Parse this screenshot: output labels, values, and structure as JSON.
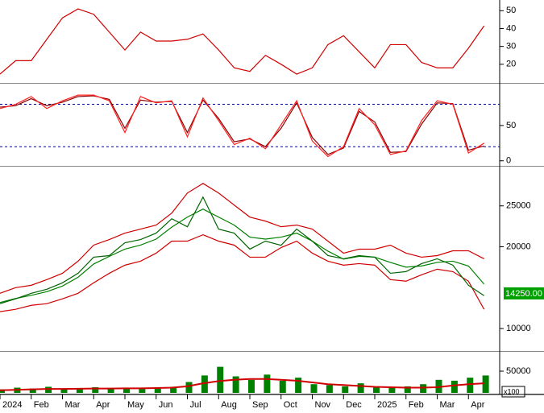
{
  "chart_data": {
    "type": "stock",
    "x": [
      0,
      0.5,
      1,
      1.5,
      2,
      2.5,
      3,
      3.5,
      4,
      4.5,
      5,
      5.5,
      6,
      6.5,
      7,
      7.5,
      8,
      8.5,
      9,
      9.5,
      10,
      10.5,
      11,
      11.5,
      12,
      12.5,
      13,
      13.5,
      14,
      14.5,
      15,
      15.5
    ],
    "xlim": [
      0,
      16
    ],
    "xticks": [
      {
        "value": 0,
        "label": "2024"
      },
      {
        "value": 1,
        "label": "Feb"
      },
      {
        "value": 2,
        "label": "Mar"
      },
      {
        "value": 3,
        "label": "Apr"
      },
      {
        "value": 4,
        "label": "May"
      },
      {
        "value": 5,
        "label": "Jun"
      },
      {
        "value": 6,
        "label": "Jul"
      },
      {
        "value": 7,
        "label": "Aug"
      },
      {
        "value": 8,
        "label": "Sep"
      },
      {
        "value": 9,
        "label": "Oct"
      },
      {
        "value": 10,
        "label": "Nov"
      },
      {
        "value": 11,
        "label": "Dec"
      },
      {
        "value": 12,
        "label": "2025"
      },
      {
        "value": 13,
        "label": "Feb"
      },
      {
        "value": 14,
        "label": "Mar"
      },
      {
        "value": 15,
        "label": "Apr"
      }
    ],
    "panels": [
      {
        "type": "line",
        "ylim": [
          10,
          56
        ],
        "yticks": [
          20,
          30,
          40,
          50
        ],
        "series": [
          {
            "color": "#d00000",
            "values": [
              14.5,
              22,
              22,
              34,
              46,
              51,
              48,
              38,
              28,
              38,
              33,
              33,
              34,
              37,
              28,
              18,
              16,
              25,
              20,
              14.5,
              18,
              31,
              36,
              27,
              18,
              31,
              31,
              21,
              18,
              18,
              29,
              41.5
            ]
          }
        ]
      },
      {
        "type": "line",
        "ylim": [
          -6,
          108
        ],
        "yticks": [
          0,
          50
        ],
        "hlines": [
          80,
          20
        ],
        "series": [
          {
            "color": "#8b0000",
            "values": [
              76,
              78,
              88,
              78,
              83,
              91,
              92,
              87,
              46,
              86,
              83,
              84,
              40,
              86,
              60,
              27,
              31,
              20,
              46,
              82,
              33,
              9,
              18,
              70,
              55,
              12,
              13,
              52,
              82,
              81,
              15,
              21
            ]
          },
          {
            "color": "#ff2020",
            "values": [
              74,
              80,
              91,
              74,
              85,
              93,
              93,
              85,
              40,
              91,
              82,
              85,
              34,
              89,
              57,
              23,
              32,
              17,
              51,
              85,
              28,
              6,
              20,
              74,
              51,
              9,
              14,
              57,
              85,
              80,
              11,
              25
            ]
          }
        ]
      },
      {
        "type": "line",
        "ylim": [
          7350,
          29700
        ],
        "yticks": [
          10000,
          20000,
          25000
        ],
        "last_label": "14250.00",
        "last_value": 14250,
        "series": [
          {
            "color": "#d00000",
            "values": [
              14310,
              15000,
              15290,
              15980,
              16760,
              18240,
              20200,
              20880,
              21670,
              22160,
              22650,
              24120,
              26570,
              27750,
              26570,
              25100,
              23630,
              23140,
              22450,
              22650,
              22160,
              20690,
              19220,
              19710,
              19710,
              20200,
              19220,
              18730,
              18920,
              19510,
              19510,
              18530
            ]
          },
          {
            "color": "#d00000",
            "values": [
              12060,
              12350,
              12840,
              13040,
              13630,
              14310,
              15590,
              16760,
              17750,
              18240,
              19220,
              20690,
              20690,
              21470,
              20690,
              20200,
              18730,
              18730,
              19900,
              20690,
              19220,
              18240,
              17750,
              17940,
              17750,
              15980,
              15790,
              16570,
              17260,
              16960,
              15790,
              12350
            ]
          },
          {
            "color": "#008000",
            "values": [
              13185,
              13675,
              14065,
              14510,
              15195,
              16275,
              17895,
              18820,
              19710,
              20200,
              20935,
              22405,
              23630,
              24610,
              23630,
              22650,
              21180,
              20935,
              21175,
              21670,
              20690,
              19465,
              18485,
              18825,
              18730,
              18090,
              17505,
              17650,
              18090,
              18235,
              17650,
              15440
            ]
          },
          {
            "color": "#006400",
            "values": [
              13040,
              13630,
              14310,
              14800,
              15590,
              16760,
              18730,
              18920,
              20490,
              20880,
              21670,
              23430,
              22450,
              26080,
              22160,
              21670,
              19710,
              20690,
              20180,
              22160,
              20690,
              18920,
              18530,
              18920,
              18730,
              16760,
              16960,
              17940,
              18530,
              17750,
              15290,
              14020
            ]
          }
        ]
      },
      {
        "type": "bar",
        "ylim": [
          0,
          92600
        ],
        "yticks": [
          50000
        ],
        "unit_label": "x100",
        "color": "#008000",
        "values": [
          8000,
          12000,
          10000,
          14000,
          9000,
          11000,
          13000,
          10000,
          12000,
          9000,
          10000,
          14000,
          25000,
          40000,
          60000,
          38000,
          30000,
          42000,
          28000,
          35000,
          20000,
          18000,
          15000,
          22000,
          14000,
          12000,
          15000,
          20000,
          30000,
          28000,
          35000,
          40000
        ],
        "series": [
          {
            "color": "#d00000",
            "values": [
              6000,
              7000,
              8000,
              9000,
              9000,
              9500,
              10000,
              10000,
              10500,
              10500,
              11000,
              12000,
              15000,
              22000,
              27000,
              30000,
              32000,
              32000,
              30000,
              28000,
              24000,
              20000,
              18000,
              16000,
              14000,
              13000,
              12000,
              12000,
              13000,
              17000,
              20000,
              22000
            ]
          }
        ]
      }
    ]
  }
}
